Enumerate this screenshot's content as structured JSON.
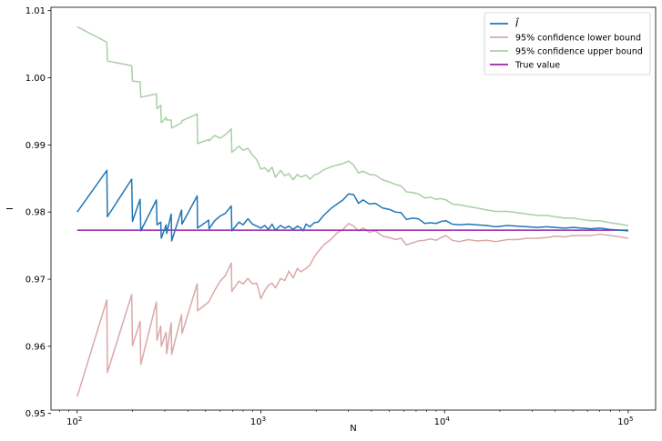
{
  "chart_data": {
    "type": "line",
    "title": "",
    "xlabel": "N",
    "ylabel": "I",
    "x_scale": "log",
    "xlim": [
      72,
      141000
    ],
    "ylim": [
      0.9505,
      1.0105
    ],
    "x_ticks": [
      {
        "value": 100,
        "base": "10",
        "exp": "2"
      },
      {
        "value": 1000,
        "base": "10",
        "exp": "3"
      },
      {
        "value": 10000,
        "base": "10",
        "exp": "4"
      },
      {
        "value": 100000,
        "base": "10",
        "exp": "5"
      }
    ],
    "y_ticks": [
      {
        "value": 0.95,
        "label": "0.95"
      },
      {
        "value": 0.96,
        "label": "0.96"
      },
      {
        "value": 0.97,
        "label": "0.97"
      },
      {
        "value": 0.98,
        "label": "0.98"
      },
      {
        "value": 0.99,
        "label": "0.99"
      },
      {
        "value": 1.0,
        "label": "1.00"
      },
      {
        "value": 1.01,
        "label": "1.01"
      }
    ],
    "legend_position": "top-right",
    "series": [
      {
        "name": "Î",
        "color": "#1f77b4",
        "points": [
          [
            100,
            0.98
          ],
          [
            145,
            0.9862
          ],
          [
            146,
            0.9793
          ],
          [
            198,
            0.9849
          ],
          [
            200,
            0.9786
          ],
          [
            220,
            0.9819
          ],
          [
            222,
            0.9772
          ],
          [
            270,
            0.9818
          ],
          [
            272,
            0.9781
          ],
          [
            285,
            0.9785
          ],
          [
            287,
            0.9761
          ],
          [
            305,
            0.9781
          ],
          [
            307,
            0.9768
          ],
          [
            325,
            0.9797
          ],
          [
            327,
            0.9757
          ],
          [
            370,
            0.9803
          ],
          [
            372,
            0.9782
          ],
          [
            450,
            0.9824
          ],
          [
            452,
            0.9776
          ],
          [
            520,
            0.9788
          ],
          [
            522,
            0.9775
          ],
          [
            560,
            0.9787
          ],
          [
            600,
            0.9794
          ],
          [
            640,
            0.9798
          ],
          [
            690,
            0.9809
          ],
          [
            695,
            0.9772
          ],
          [
            760,
            0.9785
          ],
          [
            800,
            0.9781
          ],
          [
            850,
            0.979
          ],
          [
            900,
            0.9782
          ],
          [
            950,
            0.9779
          ],
          [
            1000,
            0.9776
          ],
          [
            1050,
            0.978
          ],
          [
            1100,
            0.9774
          ],
          [
            1150,
            0.9782
          ],
          [
            1200,
            0.9773
          ],
          [
            1280,
            0.978
          ],
          [
            1350,
            0.9776
          ],
          [
            1420,
            0.9779
          ],
          [
            1500,
            0.9774
          ],
          [
            1580,
            0.9779
          ],
          [
            1650,
            0.9776
          ],
          [
            1700,
            0.9772
          ],
          [
            1760,
            0.9782
          ],
          [
            1850,
            0.9778
          ],
          [
            1950,
            0.9784
          ],
          [
            2050,
            0.9785
          ],
          [
            2200,
            0.9795
          ],
          [
            2400,
            0.9805
          ],
          [
            2600,
            0.9812
          ],
          [
            2800,
            0.9818
          ],
          [
            3000,
            0.9827
          ],
          [
            3200,
            0.9826
          ],
          [
            3400,
            0.9813
          ],
          [
            3600,
            0.9818
          ],
          [
            3900,
            0.9812
          ],
          [
            4200,
            0.9813
          ],
          [
            4600,
            0.9806
          ],
          [
            5000,
            0.9804
          ],
          [
            5400,
            0.98
          ],
          [
            5800,
            0.9799
          ],
          [
            6200,
            0.9789
          ],
          [
            6700,
            0.9791
          ],
          [
            7200,
            0.979
          ],
          [
            7800,
            0.9783
          ],
          [
            8400,
            0.9784
          ],
          [
            9000,
            0.9783
          ],
          [
            9600,
            0.9786
          ],
          [
            10200,
            0.9787
          ],
          [
            11000,
            0.9782
          ],
          [
            12000,
            0.9781
          ],
          [
            13500,
            0.9782
          ],
          [
            15000,
            0.9781
          ],
          [
            17000,
            0.978
          ],
          [
            19000,
            0.9778
          ],
          [
            22000,
            0.978
          ],
          [
            25000,
            0.9779
          ],
          [
            28000,
            0.9778
          ],
          [
            32000,
            0.9777
          ],
          [
            36000,
            0.9778
          ],
          [
            40000,
            0.9777
          ],
          [
            45000,
            0.9776
          ],
          [
            50000,
            0.9777
          ],
          [
            56000,
            0.9776
          ],
          [
            63000,
            0.9775
          ],
          [
            70000,
            0.9776
          ],
          [
            80000,
            0.9774
          ],
          [
            90000,
            0.9773
          ],
          [
            100000,
            0.9772
          ]
        ]
      },
      {
        "name": "95% confidence lower bound",
        "color": "#dba8a8",
        "points": [
          [
            100,
            0.9525
          ],
          [
            145,
            0.9669
          ],
          [
            146,
            0.9561
          ],
          [
            198,
            0.9677
          ],
          [
            200,
            0.9601
          ],
          [
            220,
            0.9637
          ],
          [
            222,
            0.9573
          ],
          [
            270,
            0.9666
          ],
          [
            272,
            0.9609
          ],
          [
            285,
            0.963
          ],
          [
            287,
            0.96
          ],
          [
            305,
            0.9621
          ],
          [
            307,
            0.9589
          ],
          [
            325,
            0.9635
          ],
          [
            327,
            0.9588
          ],
          [
            370,
            0.9647
          ],
          [
            372,
            0.9619
          ],
          [
            450,
            0.9693
          ],
          [
            452,
            0.9653
          ],
          [
            520,
            0.9666
          ],
          [
            560,
            0.9683
          ],
          [
            600,
            0.9697
          ],
          [
            640,
            0.9705
          ],
          [
            690,
            0.9724
          ],
          [
            695,
            0.9682
          ],
          [
            760,
            0.9697
          ],
          [
            800,
            0.9693
          ],
          [
            850,
            0.9701
          ],
          [
            900,
            0.9693
          ],
          [
            950,
            0.9694
          ],
          [
            1000,
            0.9671
          ],
          [
            1050,
            0.9683
          ],
          [
            1100,
            0.9691
          ],
          [
            1150,
            0.9694
          ],
          [
            1200,
            0.9687
          ],
          [
            1280,
            0.9701
          ],
          [
            1350,
            0.9698
          ],
          [
            1420,
            0.9712
          ],
          [
            1500,
            0.9702
          ],
          [
            1580,
            0.9716
          ],
          [
            1650,
            0.9711
          ],
          [
            1760,
            0.9716
          ],
          [
            1850,
            0.9721
          ],
          [
            1950,
            0.9733
          ],
          [
            2050,
            0.9741
          ],
          [
            2200,
            0.9751
          ],
          [
            2400,
            0.9759
          ],
          [
            2600,
            0.9769
          ],
          [
            2800,
            0.9774
          ],
          [
            3000,
            0.9783
          ],
          [
            3200,
            0.9779
          ],
          [
            3400,
            0.9772
          ],
          [
            3600,
            0.9776
          ],
          [
            3900,
            0.977
          ],
          [
            4200,
            0.9772
          ],
          [
            4600,
            0.9764
          ],
          [
            5000,
            0.9762
          ],
          [
            5400,
            0.9759
          ],
          [
            5800,
            0.9761
          ],
          [
            6200,
            0.9751
          ],
          [
            6700,
            0.9754
          ],
          [
            7200,
            0.9757
          ],
          [
            7800,
            0.9758
          ],
          [
            8400,
            0.976
          ],
          [
            9000,
            0.9758
          ],
          [
            9600,
            0.9762
          ],
          [
            10200,
            0.9765
          ],
          [
            11000,
            0.9758
          ],
          [
            12000,
            0.9756
          ],
          [
            13500,
            0.9759
          ],
          [
            15000,
            0.9757
          ],
          [
            17000,
            0.9758
          ],
          [
            19000,
            0.9756
          ],
          [
            22000,
            0.9759
          ],
          [
            25000,
            0.9759
          ],
          [
            28000,
            0.9761
          ],
          [
            32000,
            0.9761
          ],
          [
            36000,
            0.9762
          ],
          [
            40000,
            0.9764
          ],
          [
            45000,
            0.9763
          ],
          [
            50000,
            0.9765
          ],
          [
            56000,
            0.9765
          ],
          [
            63000,
            0.9765
          ],
          [
            70000,
            0.9767
          ],
          [
            80000,
            0.9765
          ],
          [
            90000,
            0.9763
          ],
          [
            100000,
            0.9761
          ]
        ]
      },
      {
        "name": "95% confidence upper bound",
        "color": "#a9cfa5",
        "points": [
          [
            100,
            1.0076
          ],
          [
            145,
            1.0053
          ],
          [
            146,
            1.0025
          ],
          [
            198,
            1.0018
          ],
          [
            200,
            0.9995
          ],
          [
            220,
            0.9994
          ],
          [
            222,
            0.9971
          ],
          [
            270,
            0.9976
          ],
          [
            272,
            0.9954
          ],
          [
            285,
            0.9959
          ],
          [
            287,
            0.9933
          ],
          [
            305,
            0.9941
          ],
          [
            307,
            0.9937
          ],
          [
            325,
            0.9937
          ],
          [
            327,
            0.9925
          ],
          [
            370,
            0.9933
          ],
          [
            372,
            0.9936
          ],
          [
            450,
            0.9946
          ],
          [
            452,
            0.9902
          ],
          [
            520,
            0.9908
          ],
          [
            522,
            0.9906
          ],
          [
            560,
            0.9914
          ],
          [
            600,
            0.991
          ],
          [
            640,
            0.9915
          ],
          [
            690,
            0.9924
          ],
          [
            695,
            0.9889
          ],
          [
            760,
            0.9898
          ],
          [
            800,
            0.9892
          ],
          [
            850,
            0.9895
          ],
          [
            900,
            0.9885
          ],
          [
            950,
            0.9878
          ],
          [
            1000,
            0.9864
          ],
          [
            1050,
            0.9866
          ],
          [
            1100,
            0.986
          ],
          [
            1150,
            0.9867
          ],
          [
            1200,
            0.9852
          ],
          [
            1280,
            0.9862
          ],
          [
            1350,
            0.9854
          ],
          [
            1420,
            0.9857
          ],
          [
            1500,
            0.9848
          ],
          [
            1580,
            0.9856
          ],
          [
            1650,
            0.9852
          ],
          [
            1760,
            0.9855
          ],
          [
            1850,
            0.9849
          ],
          [
            1950,
            0.9855
          ],
          [
            2050,
            0.9857
          ],
          [
            2200,
            0.9863
          ],
          [
            2400,
            0.9867
          ],
          [
            2600,
            0.987
          ],
          [
            2800,
            0.9872
          ],
          [
            3000,
            0.9876
          ],
          [
            3200,
            0.987
          ],
          [
            3400,
            0.9858
          ],
          [
            3600,
            0.9861
          ],
          [
            3900,
            0.9856
          ],
          [
            4200,
            0.9855
          ],
          [
            4600,
            0.9848
          ],
          [
            5000,
            0.9845
          ],
          [
            5400,
            0.9841
          ],
          [
            5800,
            0.9839
          ],
          [
            6200,
            0.983
          ],
          [
            6700,
            0.9829
          ],
          [
            7200,
            0.9827
          ],
          [
            7800,
            0.9821
          ],
          [
            8400,
            0.9822
          ],
          [
            9000,
            0.9819
          ],
          [
            9600,
            0.982
          ],
          [
            10200,
            0.9818
          ],
          [
            11000,
            0.9812
          ],
          [
            12000,
            0.9811
          ],
          [
            13500,
            0.9808
          ],
          [
            15000,
            0.9806
          ],
          [
            17000,
            0.9803
          ],
          [
            19000,
            0.9801
          ],
          [
            22000,
            0.9801
          ],
          [
            25000,
            0.9799
          ],
          [
            28000,
            0.9797
          ],
          [
            32000,
            0.9795
          ],
          [
            36000,
            0.9795
          ],
          [
            40000,
            0.9793
          ],
          [
            45000,
            0.9791
          ],
          [
            50000,
            0.9791
          ],
          [
            56000,
            0.9789
          ],
          [
            63000,
            0.9787
          ],
          [
            70000,
            0.9787
          ],
          [
            80000,
            0.9784
          ],
          [
            90000,
            0.9782
          ],
          [
            100000,
            0.978
          ]
        ]
      },
      {
        "name": "True value",
        "color": "#9b23a8",
        "points": [
          [
            100,
            0.9773
          ],
          [
            100000,
            0.9773
          ]
        ]
      }
    ]
  }
}
